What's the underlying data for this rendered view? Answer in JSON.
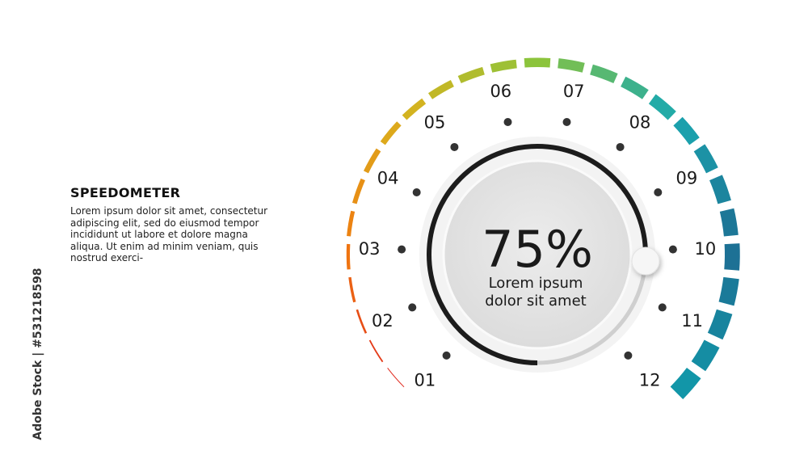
{
  "heading": "SPEEDOMETER",
  "description": "Lorem ipsum dolor sit amet, consectetur adipiscing elit, sed do eiusmod tempor incididunt ut labore et dolore magna aliqua. Ut enim ad minim veniam, quis nostrud exerci-",
  "watermark": "Adobe Stock | #531218598",
  "gauge": {
    "value_label": "75%",
    "value_percent": 75,
    "caption_line1": "Lorem ipsum",
    "caption_line2": "dolor sit amet",
    "ticks": [
      "01",
      "02",
      "03",
      "04",
      "05",
      "06",
      "07",
      "08",
      "09",
      "10",
      "11",
      "12"
    ],
    "gradient_colors": [
      "#e0281c",
      "#f07a10",
      "#d9b21e",
      "#8cc43c",
      "#1aa9b0",
      "#1e6e93",
      "#1296a8"
    ],
    "progress_color": "#1c1c1c",
    "track_color": "#cfcfcf"
  }
}
